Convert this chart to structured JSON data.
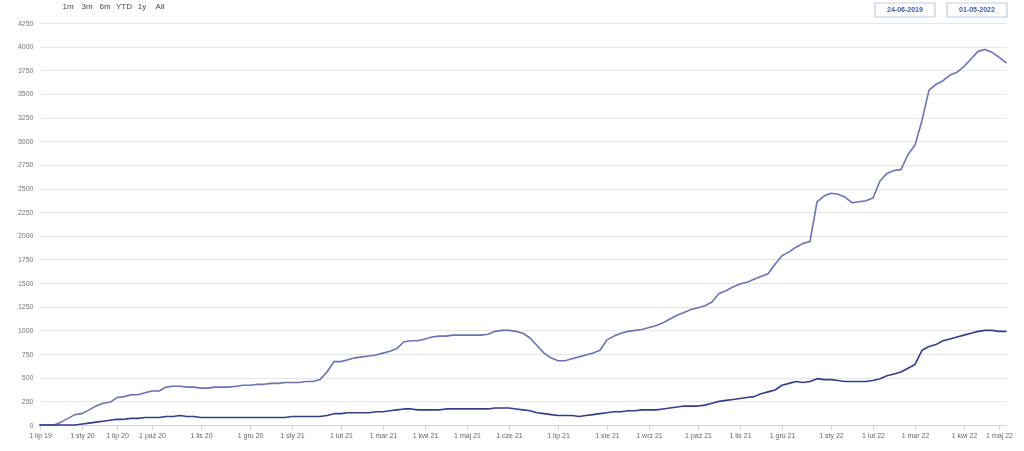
{
  "chart_data": {
    "type": "line",
    "categories": [
      "1 lip 19",
      null,
      null,
      null,
      null,
      null,
      "1 sty 20",
      null,
      null,
      null,
      null,
      "1 lip 20",
      null,
      null,
      null,
      null,
      "1 paź 20",
      null,
      null,
      null,
      null,
      null,
      null,
      "1 lis 20",
      null,
      null,
      null,
      null,
      null,
      null,
      "1 gru 20",
      null,
      null,
      null,
      null,
      null,
      "1 sty 21",
      null,
      null,
      null,
      null,
      null,
      null,
      "1 lut 21",
      null,
      null,
      null,
      null,
      null,
      "1 mar 21",
      null,
      null,
      null,
      null,
      null,
      "1 kwi 21",
      null,
      null,
      null,
      null,
      null,
      "1 maj 21",
      null,
      null,
      null,
      null,
      null,
      "1 cze 21",
      null,
      null,
      null,
      null,
      null,
      null,
      "1 lip 21",
      null,
      null,
      null,
      null,
      null,
      null,
      "1 sie 21",
      null,
      null,
      null,
      null,
      null,
      "1 wrz 21",
      null,
      null,
      null,
      null,
      null,
      null,
      "1 paź 21",
      null,
      null,
      null,
      null,
      null,
      "1 lis 21",
      null,
      null,
      null,
      null,
      null,
      "1 gru 21",
      null,
      null,
      null,
      null,
      null,
      null,
      "1 sty 22",
      null,
      null,
      null,
      null,
      null,
      "1 lut 22",
      null,
      null,
      null,
      null,
      null,
      "1 mar 22",
      null,
      null,
      null,
      null,
      null,
      null,
      "1 kwi 22",
      null,
      null,
      null,
      null,
      "1 maj 22",
      null
    ],
    "series": [
      {
        "color": "#6a73b2",
        "values": [
          0,
          0,
          0,
          30,
          70,
          110,
          120,
          160,
          200,
          230,
          240,
          290,
          300,
          320,
          320,
          340,
          360,
          360,
          400,
          410,
          410,
          400,
          400,
          390,
          390,
          400,
          400,
          400,
          410,
          420,
          420,
          430,
          430,
          440,
          440,
          450,
          450,
          450,
          460,
          460,
          480,
          560,
          670,
          670,
          690,
          710,
          720,
          730,
          740,
          760,
          780,
          810,
          880,
          890,
          890,
          910,
          930,
          940,
          940,
          950,
          950,
          950,
          950,
          950,
          960,
          990,
          1000,
          1000,
          990,
          970,
          920,
          840,
          760,
          710,
          680,
          680,
          700,
          720,
          740,
          760,
          790,
          900,
          940,
          970,
          990,
          1000,
          1010,
          1030,
          1050,
          1080,
          1120,
          1160,
          1190,
          1220,
          1240,
          1260,
          1300,
          1390,
          1420,
          1460,
          1490,
          1510,
          1540,
          1570,
          1600,
          1700,
          1790,
          1830,
          1880,
          1920,
          1940,
          2360,
          2420,
          2450,
          2440,
          2410,
          2350,
          2360,
          2370,
          2400,
          2580,
          2660,
          2690,
          2700,
          2860,
          2960,
          3220,
          3540,
          3600,
          3640,
          3700,
          3730,
          3790,
          3870,
          3950,
          3970,
          3940,
          3890,
          3830
        ]
      },
      {
        "color": "#343e86",
        "values": [
          0,
          0,
          0,
          0,
          0,
          0,
          10,
          20,
          30,
          40,
          50,
          60,
          60,
          70,
          70,
          80,
          80,
          80,
          90,
          90,
          100,
          90,
          90,
          80,
          80,
          80,
          80,
          80,
          80,
          80,
          80,
          80,
          80,
          80,
          80,
          80,
          90,
          90,
          90,
          90,
          90,
          100,
          120,
          120,
          130,
          130,
          130,
          130,
          140,
          140,
          150,
          160,
          170,
          170,
          160,
          160,
          160,
          160,
          170,
          170,
          170,
          170,
          170,
          170,
          170,
          180,
          180,
          180,
          170,
          160,
          150,
          130,
          120,
          110,
          100,
          100,
          100,
          90,
          100,
          110,
          120,
          130,
          140,
          140,
          150,
          150,
          160,
          160,
          160,
          170,
          180,
          190,
          200,
          200,
          200,
          210,
          230,
          250,
          260,
          270,
          280,
          290,
          300,
          330,
          350,
          370,
          420,
          440,
          460,
          450,
          460,
          490,
          480,
          480,
          470,
          460,
          460,
          460,
          460,
          470,
          490,
          520,
          540,
          560,
          600,
          640,
          790,
          830,
          850,
          890,
          910,
          930,
          950,
          970,
          990,
          1000,
          1000,
          990,
          990
        ]
      }
    ],
    "ylim": [
      0,
      4250
    ],
    "yticks": [
      0,
      250,
      500,
      750,
      1000,
      1250,
      1500,
      1750,
      2000,
      2250,
      2500,
      2750,
      3000,
      3250,
      3500,
      3750,
      4000,
      4250
    ],
    "grid": "y",
    "annotations": [
      "1m",
      "3m",
      "6m",
      "YTD",
      "1y",
      "All",
      "24-06-2019",
      "01-05-2022"
    ]
  }
}
